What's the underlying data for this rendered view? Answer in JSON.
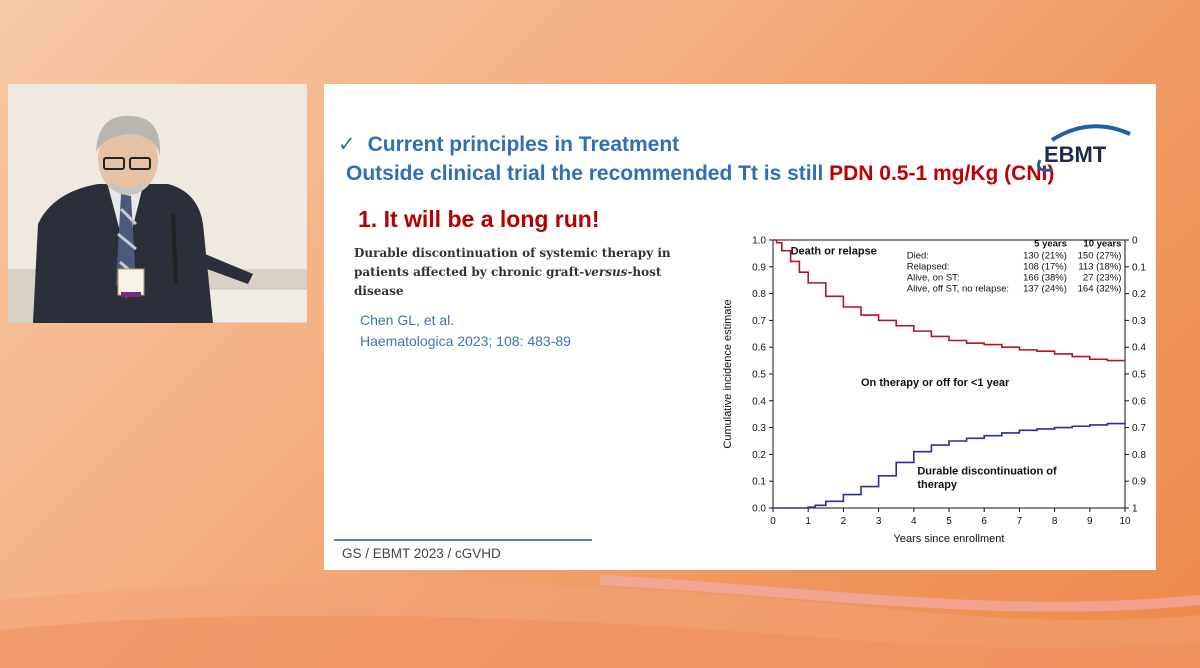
{
  "slide": {
    "check_mark": "✓",
    "title_line1": "Current principles in Treatment",
    "title_line2_prefix": "Outside clinical trial the recommended Tt is still ",
    "title_line2_highlight": "PDN 0.5-1 mg/Kg (CNI)",
    "logo_text": "EBMT",
    "heading": "1. It will be a long run!",
    "paper_title_pre": "Durable discontinuation of systemic therapy in patients affected by chronic graft-",
    "paper_title_italic": "versus",
    "paper_title_post": "-host disease",
    "citation_line1": "Chen GL, et al.",
    "citation_line2": "Haematologica 2023; 108: 483-89",
    "footer": "GS / EBMT 2023 / cGVHD"
  },
  "colors": {
    "title_blue": "#2f6fb3",
    "highlight_red": "#c00000",
    "heading_red": "#b40000",
    "citation_blue": "#3f73b8",
    "death_relapse_curve": "#b5122b",
    "discontinuation_curve": "#2a2aa6"
  },
  "chart_data": {
    "type": "line",
    "xlabel": "Years since enrollment",
    "ylabel": "Cumulative incidence estimate",
    "xlim": [
      0,
      10
    ],
    "ylim": [
      0,
      1
    ],
    "x_ticks": [
      "0",
      "1",
      "2",
      "3",
      "4",
      "5",
      "6",
      "7",
      "8",
      "9",
      "10"
    ],
    "y_ticks_left": [
      "0.0",
      "0.1",
      "0.2",
      "0.3",
      "0.4",
      "0.5",
      "0.6",
      "0.7",
      "0.8",
      "0.9",
      "1.0"
    ],
    "y_ticks_right": [
      "1",
      "0.9",
      "0.8",
      "0.7",
      "0.6",
      "0.5",
      "0.4",
      "0.3",
      "0.2",
      "0.1",
      "0"
    ],
    "grid": false,
    "annotations": [
      {
        "text": "Death or relapse",
        "x": 0.5,
        "y": 0.945
      },
      {
        "text": "On therapy or off for <1 year",
        "x": 2.5,
        "y": 0.455
      },
      {
        "text": "Durable discontinuation of",
        "x": 4.1,
        "y": 0.125
      },
      {
        "text": "therapy",
        "x": 4.1,
        "y": 0.075
      }
    ],
    "legend_table": {
      "headers": [
        "",
        "5 years",
        "10 years"
      ],
      "rows": [
        [
          "Died:",
          "130 (21%)",
          "150 (27%)"
        ],
        [
          "Relapsed:",
          "108 (17%)",
          "113 (18%)"
        ],
        [
          "Alive, on ST:",
          "166 (38%)",
          "27 (23%)"
        ],
        [
          "Alive, off ST, no relapse:",
          "137 (24%)",
          "164 (32%)"
        ]
      ]
    },
    "series": [
      {
        "color": "#b5122b",
        "x": [
          0,
          0.1,
          0.25,
          0.5,
          0.75,
          1,
          1.5,
          2,
          2.5,
          3,
          3.5,
          4,
          4.5,
          5,
          5.5,
          6,
          6.5,
          7,
          7.5,
          8,
          8.5,
          9,
          9.5,
          10
        ],
        "y": [
          1.0,
          0.99,
          0.96,
          0.92,
          0.88,
          0.84,
          0.79,
          0.75,
          0.72,
          0.7,
          0.68,
          0.66,
          0.64,
          0.625,
          0.615,
          0.61,
          0.6,
          0.59,
          0.585,
          0.575,
          0.565,
          0.555,
          0.55,
          0.55
        ]
      },
      {
        "color": "#2a2aa6",
        "x": [
          0,
          0.5,
          1,
          1.2,
          1.5,
          2,
          2.5,
          3,
          3.5,
          4,
          4.5,
          5,
          5.5,
          6,
          6.5,
          7,
          7.5,
          8,
          8.5,
          9,
          9.5,
          10
        ],
        "y": [
          0.0,
          0.0,
          0.003,
          0.01,
          0.025,
          0.05,
          0.08,
          0.12,
          0.17,
          0.21,
          0.235,
          0.25,
          0.26,
          0.27,
          0.28,
          0.29,
          0.295,
          0.3,
          0.305,
          0.31,
          0.315,
          0.32
        ]
      }
    ]
  }
}
